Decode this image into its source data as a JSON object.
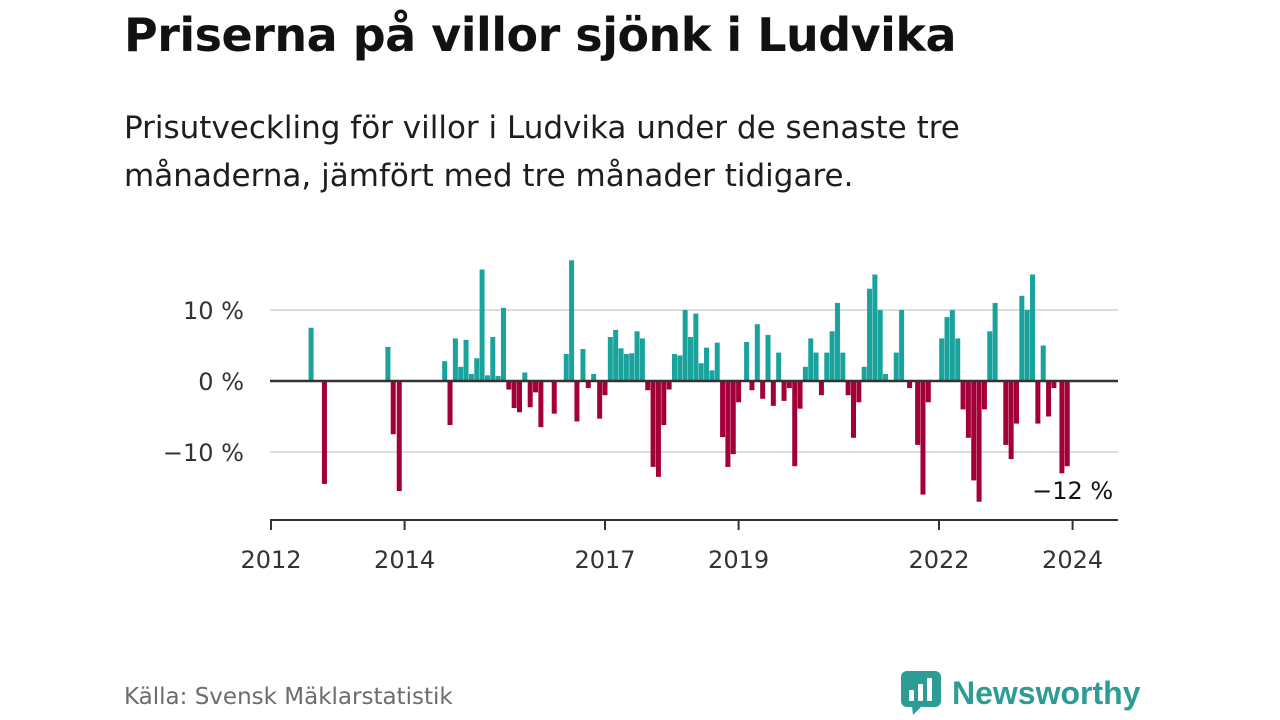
{
  "title": "Priserna på villor sjönk i Ludvika",
  "subtitle": "Prisutveckling för villor i Ludvika under de senaste tre månaderna, jämfört med tre månader tidigare.",
  "source": "Källa: Svensk Mäklarstatistik",
  "brand": "Newsworthy",
  "colors": {
    "positive": "#19a39c",
    "negative": "#a3003a",
    "zero_line": "#333333",
    "grid": "#dcdcdc",
    "brand": "#2c9c95"
  },
  "chart_data": {
    "type": "bar",
    "title": "Priserna på villor sjönk i Ludvika",
    "ylabel": "",
    "xlabel": "",
    "ylim": [
      -19,
      17
    ],
    "y_ticks": [
      10,
      0,
      -10
    ],
    "y_tick_labels": [
      "10 %",
      "0 %",
      "−10 %"
    ],
    "x_ticks": [
      {
        "label": "2012",
        "value": 2012.0
      },
      {
        "label": "2014",
        "value": 2014.0
      },
      {
        "label": "2017",
        "value": 2017.0
      },
      {
        "label": "2019",
        "value": 2019.0
      },
      {
        "label": "2022",
        "value": 2022.0
      },
      {
        "label": "2024",
        "value": 2024.0
      }
    ],
    "x_start": 2012.0,
    "bar_step": 0.0833,
    "annotation": {
      "text": "−12 %",
      "x": 2023.98,
      "y": -12
    },
    "points": [
      [
        2012.6,
        7.5
      ],
      [
        2012.8,
        -14.5
      ],
      [
        2013.75,
        4.8
      ],
      [
        2013.83,
        -7.5
      ],
      [
        2013.92,
        -15.5
      ],
      [
        2014.6,
        2.8
      ],
      [
        2014.68,
        -6.2
      ],
      [
        2014.76,
        6.0
      ],
      [
        2014.84,
        2.0
      ],
      [
        2014.92,
        5.8
      ],
      [
        2015.0,
        1.0
      ],
      [
        2015.08,
        3.2
      ],
      [
        2015.16,
        15.7
      ],
      [
        2015.24,
        0.8
      ],
      [
        2015.32,
        6.2
      ],
      [
        2015.4,
        0.7
      ],
      [
        2015.48,
        10.3
      ],
      [
        2015.56,
        -1.2
      ],
      [
        2015.64,
        -3.8
      ],
      [
        2015.72,
        -4.4
      ],
      [
        2015.8,
        1.2
      ],
      [
        2015.88,
        -3.7
      ],
      [
        2015.96,
        -1.6
      ],
      [
        2016.04,
        -6.5
      ],
      [
        2016.24,
        -4.6
      ],
      [
        2016.42,
        3.8
      ],
      [
        2016.5,
        17.0
      ],
      [
        2016.58,
        -5.7
      ],
      [
        2016.67,
        4.5
      ],
      [
        2016.75,
        -1.0
      ],
      [
        2016.83,
        1.0
      ],
      [
        2016.92,
        -5.3
      ],
      [
        2017.0,
        -2.0
      ],
      [
        2017.08,
        6.2
      ],
      [
        2017.16,
        7.2
      ],
      [
        2017.24,
        4.6
      ],
      [
        2017.32,
        3.8
      ],
      [
        2017.4,
        3.9
      ],
      [
        2017.48,
        7.0
      ],
      [
        2017.56,
        6.0
      ],
      [
        2017.64,
        -1.3
      ],
      [
        2017.72,
        -12.1
      ],
      [
        2017.8,
        -13.5
      ],
      [
        2017.88,
        -6.2
      ],
      [
        2017.96,
        -1.2
      ],
      [
        2018.04,
        3.8
      ],
      [
        2018.12,
        3.6
      ],
      [
        2018.2,
        10.0
      ],
      [
        2018.28,
        6.2
      ],
      [
        2018.36,
        9.5
      ],
      [
        2018.44,
        2.5
      ],
      [
        2018.52,
        4.7
      ],
      [
        2018.6,
        1.5
      ],
      [
        2018.68,
        5.4
      ],
      [
        2018.76,
        -7.9
      ],
      [
        2018.84,
        -12.1
      ],
      [
        2018.92,
        -10.3
      ],
      [
        2019.0,
        -3.0
      ],
      [
        2019.12,
        5.5
      ],
      [
        2019.2,
        -1.3
      ],
      [
        2019.28,
        8.0
      ],
      [
        2019.36,
        -2.5
      ],
      [
        2019.44,
        6.5
      ],
      [
        2019.52,
        -3.5
      ],
      [
        2019.6,
        4.0
      ],
      [
        2019.68,
        -2.8
      ],
      [
        2019.76,
        -1.0
      ],
      [
        2019.84,
        -12.0
      ],
      [
        2019.92,
        -3.9
      ],
      [
        2020.0,
        2.0
      ],
      [
        2020.08,
        6.0
      ],
      [
        2020.16,
        4.0
      ],
      [
        2020.24,
        -2.0
      ],
      [
        2020.32,
        4.0
      ],
      [
        2020.4,
        7.0
      ],
      [
        2020.48,
        11.0
      ],
      [
        2020.56,
        4.0
      ],
      [
        2020.64,
        -2.0
      ],
      [
        2020.72,
        -8.0
      ],
      [
        2020.8,
        -3.0
      ],
      [
        2020.88,
        2.0
      ],
      [
        2020.96,
        13.0
      ],
      [
        2021.04,
        15.0
      ],
      [
        2021.12,
        10.0
      ],
      [
        2021.2,
        1.0
      ],
      [
        2021.36,
        4.0
      ],
      [
        2021.44,
        10.0
      ],
      [
        2021.56,
        -1.0
      ],
      [
        2021.68,
        -9.0
      ],
      [
        2021.76,
        -16.0
      ],
      [
        2021.84,
        -3.0
      ],
      [
        2022.04,
        6.0
      ],
      [
        2022.12,
        9.0
      ],
      [
        2022.2,
        10.0
      ],
      [
        2022.28,
        6.0
      ],
      [
        2022.36,
        -4.0
      ],
      [
        2022.44,
        -8.0
      ],
      [
        2022.52,
        -14.0
      ],
      [
        2022.6,
        -17.0
      ],
      [
        2022.68,
        -4.0
      ],
      [
        2022.76,
        7.0
      ],
      [
        2022.84,
        11.0
      ],
      [
        2023.0,
        -9.0
      ],
      [
        2023.08,
        -11.0
      ],
      [
        2023.16,
        -6.0
      ],
      [
        2023.24,
        12.0
      ],
      [
        2023.32,
        10.0
      ],
      [
        2023.4,
        15.0
      ],
      [
        2023.48,
        -6.0
      ],
      [
        2023.56,
        5.0
      ],
      [
        2023.64,
        -5.0
      ],
      [
        2023.72,
        -1.0
      ],
      [
        2023.84,
        -13.0
      ],
      [
        2023.92,
        -12.0
      ]
    ]
  }
}
